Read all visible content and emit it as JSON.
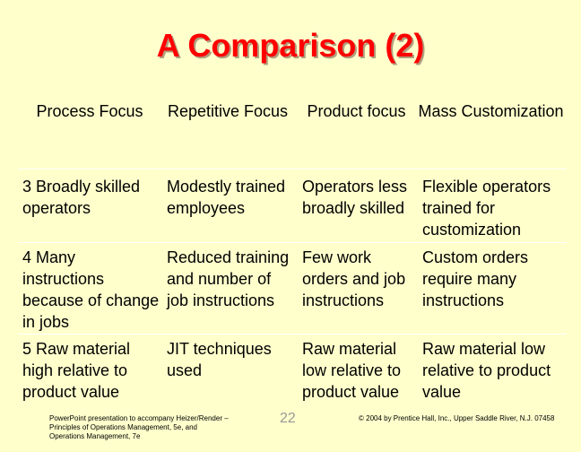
{
  "title": "A Comparison (2)",
  "table": {
    "header": [
      "Process Focus",
      "Repetitive Focus",
      "Product focus",
      "Mass Customization"
    ],
    "rows": [
      [
        "3  Broadly skilled operators",
        "Modestly trained employees",
        "Operators less broadly skilled",
        "Flexible operators trained for customization"
      ],
      [
        "4  Many instructions because of change in jobs",
        "Reduced training and number of job instructions",
        "Few work orders and job instructions",
        "Custom orders require many instructions"
      ],
      [
        "5  Raw material high relative to product value",
        "JIT techniques used",
        "Raw material low relative to product value",
        "Raw material low relative to product value"
      ]
    ]
  },
  "footer": {
    "left": "PowerPoint presentation to accompany Heizer/Render – Principles of Operations Management, 5e, and Operations Management, 7e",
    "page": "22",
    "right": "© 2004 by Prentice Hall, Inc., Upper Saddle River, N.J. 07458"
  }
}
